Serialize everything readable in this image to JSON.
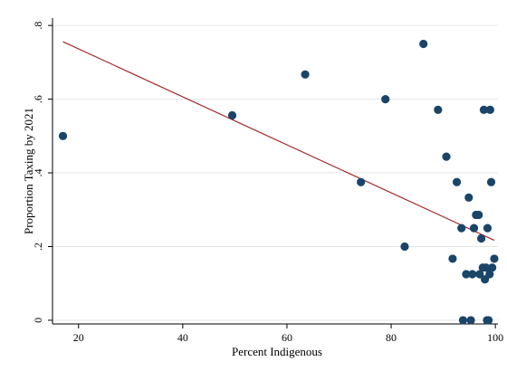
{
  "chart_data": {
    "type": "scatter",
    "xlabel": "Percent Indigenous",
    "ylabel": "Proportion Taxing by 2021",
    "xlim": [
      15,
      100.5
    ],
    "ylim": [
      -0.01,
      0.82
    ],
    "x_ticks": [
      20,
      40,
      60,
      80,
      100
    ],
    "x_tick_labels": [
      "20",
      "40",
      "60",
      "80",
      "100"
    ],
    "y_ticks": [
      0,
      0.2,
      0.4,
      0.6,
      0.8
    ],
    "y_tick_labels": [
      "0",
      ".2",
      ".4",
      ".6",
      ".8"
    ],
    "grid": true,
    "legend": "none",
    "colors": {
      "points": "#1a4468",
      "fit_line": "#a52a2a",
      "grid": "#e6e6e6"
    },
    "points": [
      {
        "x": 17.0,
        "y": 0.5
      },
      {
        "x": 49.5,
        "y": 0.556
      },
      {
        "x": 63.5,
        "y": 0.667
      },
      {
        "x": 74.2,
        "y": 0.375
      },
      {
        "x": 78.9,
        "y": 0.6
      },
      {
        "x": 82.6,
        "y": 0.2
      },
      {
        "x": 86.2,
        "y": 0.75
      },
      {
        "x": 89.0,
        "y": 0.571
      },
      {
        "x": 90.6,
        "y": 0.444
      },
      {
        "x": 91.8,
        "y": 0.167
      },
      {
        "x": 92.6,
        "y": 0.375
      },
      {
        "x": 93.5,
        "y": 0.25
      },
      {
        "x": 93.8,
        "y": 0.0
      },
      {
        "x": 94.4,
        "y": 0.125
      },
      {
        "x": 94.9,
        "y": 0.333
      },
      {
        "x": 95.3,
        "y": 0.0
      },
      {
        "x": 95.6,
        "y": 0.125
      },
      {
        "x": 95.9,
        "y": 0.25
      },
      {
        "x": 96.3,
        "y": 0.286
      },
      {
        "x": 96.8,
        "y": 0.286
      },
      {
        "x": 97.0,
        "y": 0.125
      },
      {
        "x": 97.3,
        "y": 0.222
      },
      {
        "x": 97.6,
        "y": 0.143
      },
      {
        "x": 97.8,
        "y": 0.571
      },
      {
        "x": 98.0,
        "y": 0.111
      },
      {
        "x": 98.2,
        "y": 0.143
      },
      {
        "x": 98.4,
        "y": 0.0
      },
      {
        "x": 98.5,
        "y": 0.25
      },
      {
        "x": 98.7,
        "y": 0.0
      },
      {
        "x": 98.9,
        "y": 0.125
      },
      {
        "x": 99.0,
        "y": 0.571
      },
      {
        "x": 99.2,
        "y": 0.375
      },
      {
        "x": 99.4,
        "y": 0.143
      },
      {
        "x": 99.8,
        "y": 0.167
      }
    ],
    "fit_line": {
      "x": [
        17.0,
        99.8
      ],
      "y": [
        0.756,
        0.217
      ]
    }
  }
}
